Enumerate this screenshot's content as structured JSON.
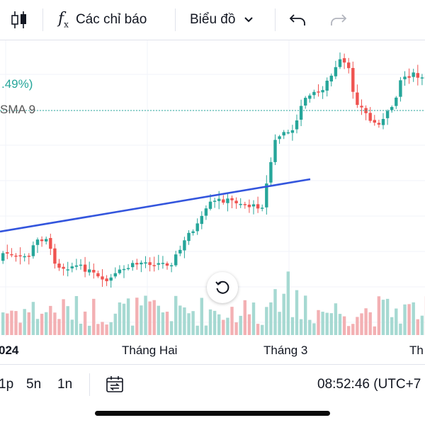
{
  "toolbar": {
    "indicators_label": "Các chỉ báo",
    "chart_type_label": "Biểu đồ"
  },
  "chart": {
    "change_text": ".49%)",
    "sma_label": "SMA 9",
    "x_labels": [
      "024",
      "Tháng Hai",
      "Tháng 3",
      "Th"
    ],
    "colors": {
      "up": "#26a69a",
      "down": "#ef5350",
      "up_vol": "#a6d9d2",
      "down_vol": "#f3b0b3",
      "trend": "#3355dd",
      "sma": "#26a69a"
    }
  },
  "bottom": {
    "ranges": [
      "1p",
      "5n",
      "1n"
    ],
    "time": "08:52:46 (UTC+7"
  }
}
